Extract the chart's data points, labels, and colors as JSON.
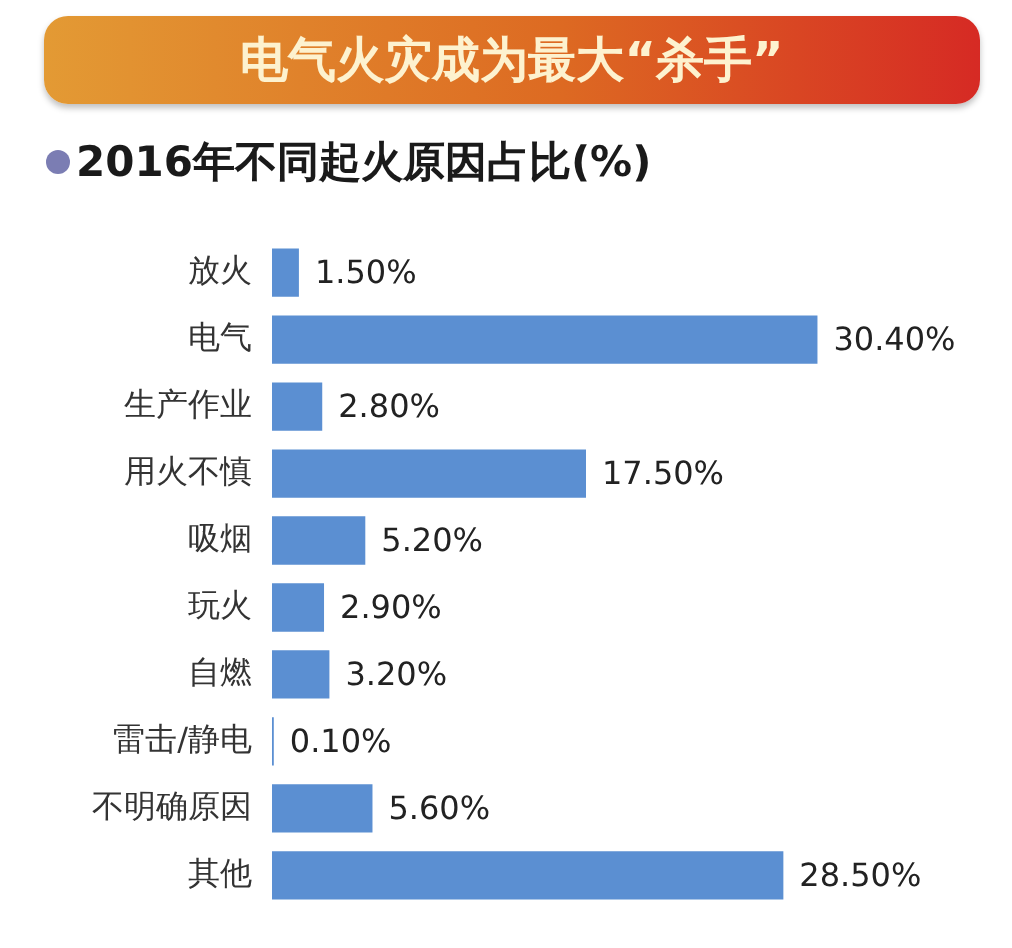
{
  "chart_data": {
    "type": "bar",
    "orientation": "horizontal",
    "title": "电气火灾成为最大“杀手”",
    "subtitle": "2016年不同起火原因占比(%)",
    "categories": [
      "放火",
      "电气",
      "生产作业",
      "用火不慎",
      "吸烟",
      "玩火",
      "自燃",
      "雷击/静电",
      "不明确原因",
      "其他"
    ],
    "values": [
      1.5,
      30.4,
      2.8,
      17.5,
      5.2,
      2.9,
      3.2,
      0.1,
      5.6,
      28.5
    ],
    "value_labels": [
      "1.50%",
      "30.40%",
      "2.80%",
      "17.50%",
      "5.20%",
      "2.90%",
      "3.20%",
      "0.10%",
      "5.60%",
      "28.50%"
    ],
    "color": "#5b8fd2",
    "tick_labels": "y"
  }
}
